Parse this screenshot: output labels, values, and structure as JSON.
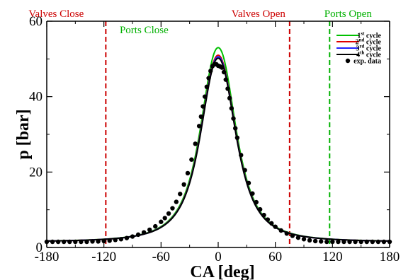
{
  "chart_data": {
    "type": "line",
    "xlabel": "CA [deg]",
    "ylabel": "p [bar]",
    "xlim": [
      -180,
      180
    ],
    "ylim": [
      0,
      60
    ],
    "x_ticks": [
      -180,
      -120,
      -60,
      0,
      60,
      120,
      180
    ],
    "y_ticks": [
      0,
      20,
      40,
      60
    ],
    "x_tick_labels": [
      "-180",
      "-120",
      "-60",
      "0",
      "60",
      "120",
      "180"
    ],
    "y_tick_labels": [
      "0",
      "20",
      "40",
      "60"
    ],
    "legend_position": "top-right",
    "legend": [
      {
        "base": "1",
        "sup": "st",
        "rest": " cycle",
        "color": "#00c000",
        "marker": "line"
      },
      {
        "base": "2",
        "sup": "nd",
        "rest": " cycle",
        "color": "#e00000",
        "marker": "line"
      },
      {
        "base": "3",
        "sup": "rd",
        "rest": " cycle",
        "color": "#2020ff",
        "marker": "line"
      },
      {
        "base": "4",
        "sup": "th",
        "rest": " cycle",
        "color": "#000000",
        "marker": "line"
      },
      {
        "base": "exp. data",
        "sup": "",
        "rest": "",
        "color": "#000000",
        "marker": "dot"
      }
    ],
    "events": [
      {
        "label": "Valves Close",
        "x": -118,
        "color": "#cc0000"
      },
      {
        "label": "Ports Close",
        "x": -118,
        "color": "#00b000"
      },
      {
        "label": "Valves Open",
        "x": 75,
        "color": "#cc0000"
      },
      {
        "label": "Ports Open",
        "x": 117,
        "color": "#00b000"
      }
    ],
    "series": [
      {
        "name": "1st cycle",
        "color": "#00c000",
        "peak": 53.0
      },
      {
        "name": "2nd cycle",
        "color": "#e00000",
        "peak": 51.0
      },
      {
        "name": "3rd cycle",
        "color": "#2020ff",
        "peak": 50.6
      },
      {
        "name": "4th cycle",
        "color": "#000000",
        "peak": 50.2
      },
      {
        "name": "exp. data",
        "color": "#000000",
        "markers": true,
        "x": [
          -180,
          -174,
          -168,
          -162,
          -156,
          -150,
          -144,
          -138,
          -132,
          -126,
          -120,
          -114,
          -108,
          -102,
          -96,
          -90,
          -84,
          -78,
          -72,
          -66,
          -60,
          -56,
          -52,
          -48,
          -44,
          -40,
          -36,
          -32,
          -28,
          -24,
          -20,
          -18,
          -16,
          -14,
          -12,
          -10,
          -8,
          -6,
          -4,
          -2,
          0,
          2,
          4,
          6,
          8,
          10,
          12,
          14,
          16,
          18,
          20,
          24,
          28,
          32,
          36,
          40,
          44,
          48,
          52,
          56,
          60,
          66,
          72,
          78,
          84,
          90,
          96,
          102,
          108,
          114,
          120,
          126,
          132,
          138,
          144,
          150,
          156,
          162,
          168,
          174,
          180
        ],
        "y": [
          1.5,
          1.5,
          1.5,
          1.5,
          1.5,
          1.5,
          1.5,
          1.5,
          1.6,
          1.6,
          1.7,
          1.8,
          2.0,
          2.2,
          2.5,
          2.9,
          3.4,
          4.0,
          4.7,
          5.6,
          6.8,
          7.8,
          9.0,
          10.4,
          12.1,
          14.2,
          16.7,
          19.7,
          23.3,
          27.5,
          32.2,
          34.7,
          37.4,
          40.0,
          42.6,
          44.9,
          46.8,
          48.1,
          48.6,
          48.6,
          48.2,
          48.0,
          47.7,
          46.5,
          44.5,
          42.1,
          39.6,
          36.9,
          34.2,
          31.6,
          29.1,
          24.5,
          20.5,
          17.1,
          14.3,
          12.0,
          10.1,
          8.6,
          7.4,
          6.4,
          5.5,
          4.5,
          3.7,
          3.1,
          2.6,
          2.2,
          1.9,
          1.7,
          1.6,
          1.5,
          1.5,
          1.5,
          1.5,
          1.5,
          1.5,
          1.5,
          1.5,
          1.5,
          1.5,
          1.5,
          1.5
        ]
      }
    ]
  }
}
